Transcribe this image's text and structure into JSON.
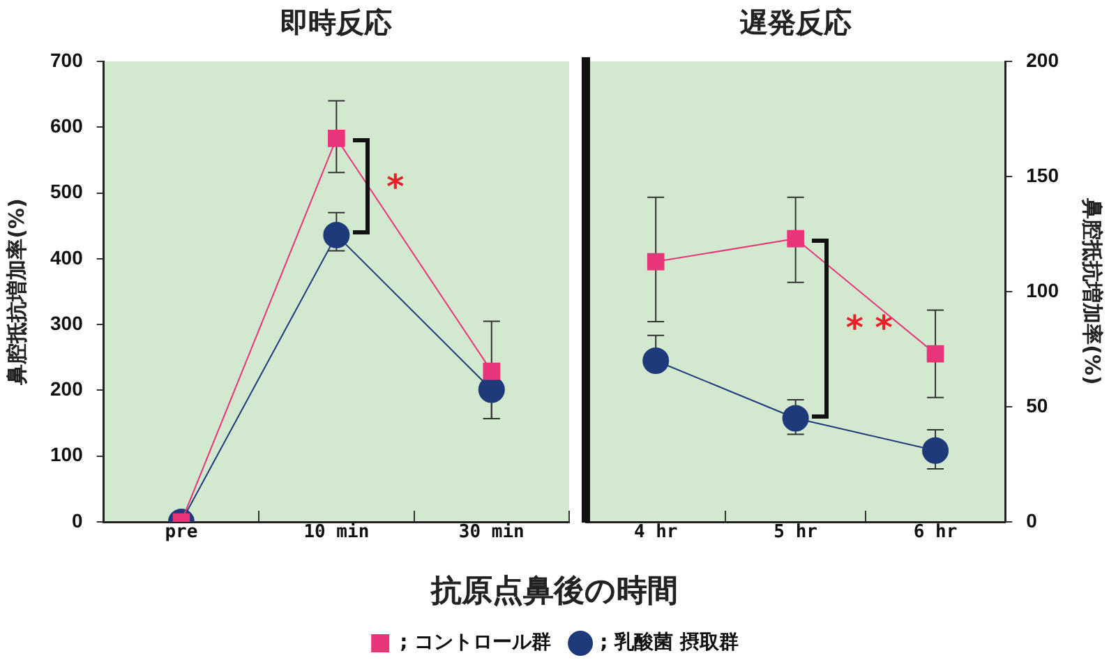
{
  "chart_data": [
    {
      "type": "line",
      "title": "即時反応",
      "ylabel": "鼻腔抵抗増加率(%)",
      "xlabel": "抗原点鼻後の時間",
      "categories": [
        "pre",
        "10 min",
        "30 min"
      ],
      "ylim": [
        0,
        700
      ],
      "yticks": [
        0,
        100,
        200,
        300,
        400,
        500,
        600,
        700
      ],
      "grid": false,
      "legend": "bottom",
      "line_style": "solid",
      "series": [
        {
          "name": "; コントロール群",
          "color": "#e8357a",
          "marker": "square",
          "values": [
            0,
            583,
            229
          ],
          "errors": [
            null,
            [
              531,
              640
            ],
            [
              157,
              305
            ]
          ]
        },
        {
          "name": "; 乳酸菌 摂取群",
          "color": "#1f3a7a",
          "marker": "circle",
          "values": [
            0,
            436,
            201
          ],
          "errors": [
            null,
            [
              412,
              470
            ],
            [
              157,
              201
            ]
          ]
        }
      ],
      "annotations": [
        "*"
      ]
    },
    {
      "type": "line",
      "title": "遅発反応",
      "y2label": "鼻腔抵抗増加率(%)",
      "categories": [
        "4 hr",
        "5 hr",
        "6 hr"
      ],
      "y2lim": [
        0,
        200
      ],
      "y2ticks": [
        0,
        50,
        100,
        150,
        200
      ],
      "grid": false,
      "line_style": "solid",
      "series": [
        {
          "color": "#e8357a",
          "marker": "square",
          "axis": "y2",
          "values": [
            113,
            123,
            73
          ],
          "errors": [
            [
              87,
              141
            ],
            [
              104,
              141
            ],
            [
              54,
              92
            ]
          ]
        },
        {
          "color": "#1f3a7a",
          "marker": "circle",
          "axis": "y2",
          "values": [
            70,
            45,
            31
          ],
          "errors": [
            [
              70,
              81
            ],
            [
              38,
              53
            ],
            [
              23,
              40
            ]
          ]
        }
      ],
      "annotations": [
        "* *"
      ]
    }
  ]
}
